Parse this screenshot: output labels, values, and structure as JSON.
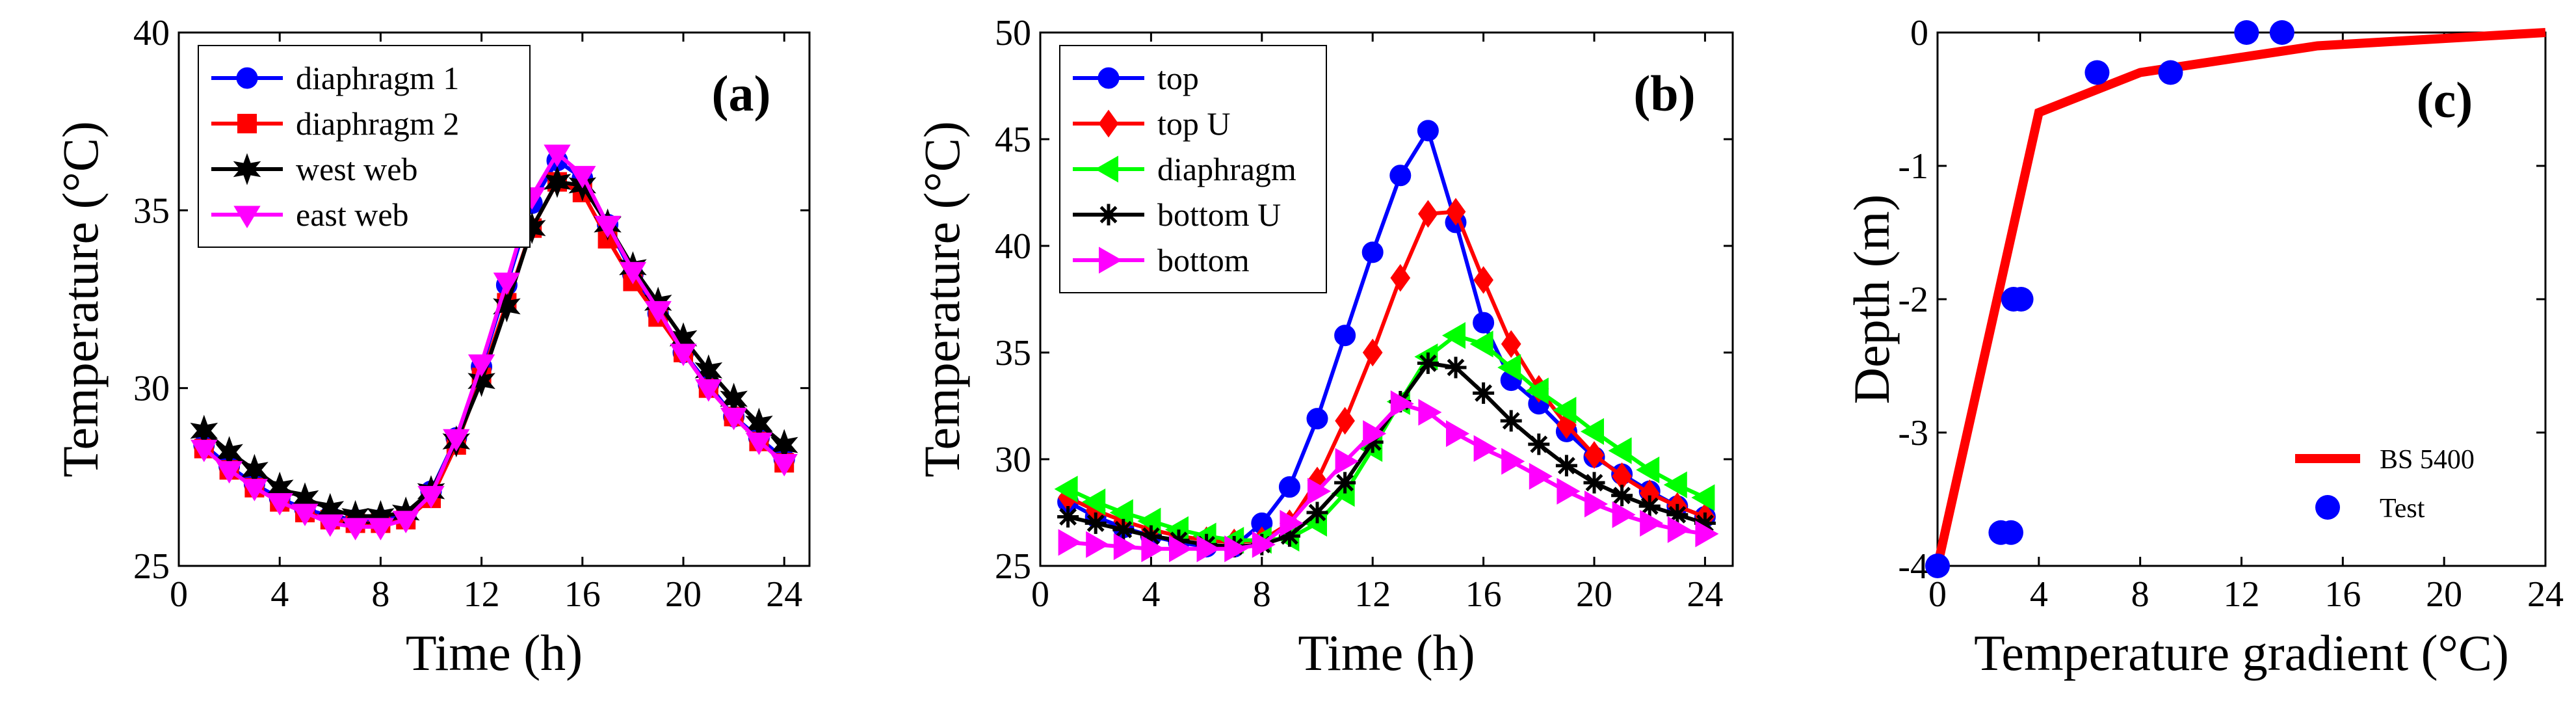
{
  "chart_data": [
    {
      "type": "line",
      "panel_label": "(a)",
      "xlabel": "Time (h)",
      "ylabel": "Temperature (°C)",
      "xlim": [
        0,
        25
      ],
      "ylim": [
        25,
        40
      ],
      "xticks": [
        0,
        4,
        8,
        12,
        16,
        20,
        24
      ],
      "yticks": [
        25,
        30,
        35,
        40
      ],
      "grid": false,
      "legend_position": "top-left",
      "x": [
        1,
        2,
        3,
        4,
        5,
        6,
        7,
        8,
        9,
        10,
        11,
        12,
        13,
        14,
        15,
        16,
        17,
        18,
        19,
        20,
        21,
        22,
        23,
        24
      ],
      "series": [
        {
          "name": "diaphragm 1",
          "color": "#0000ff",
          "marker": "circle",
          "values": [
            28.4,
            27.8,
            27.3,
            26.9,
            26.6,
            26.4,
            26.3,
            26.3,
            26.4,
            27.1,
            28.6,
            30.6,
            32.9,
            35.2,
            36.4,
            35.9,
            34.6,
            33.2,
            32.1,
            31.0,
            30.1,
            29.2,
            28.6,
            28.0
          ]
        },
        {
          "name": "diaphragm 2",
          "color": "#ff0000",
          "marker": "square",
          "values": [
            28.3,
            27.7,
            27.2,
            26.8,
            26.5,
            26.3,
            26.2,
            26.2,
            26.3,
            26.9,
            28.4,
            30.3,
            32.4,
            34.5,
            35.8,
            35.5,
            34.2,
            33.0,
            32.0,
            31.0,
            30.0,
            29.2,
            28.5,
            27.9
          ]
        },
        {
          "name": "west web",
          "color": "#000000",
          "marker": "star",
          "values": [
            28.8,
            28.2,
            27.7,
            27.2,
            26.9,
            26.6,
            26.4,
            26.4,
            26.5,
            27.1,
            28.5,
            30.2,
            32.3,
            34.5,
            35.8,
            35.7,
            34.6,
            33.4,
            32.4,
            31.4,
            30.5,
            29.7,
            29.0,
            28.4
          ]
        },
        {
          "name": "east web",
          "color": "#ff00ff",
          "marker": "triangle-down",
          "values": [
            28.3,
            27.7,
            27.2,
            26.8,
            26.5,
            26.2,
            26.1,
            26.1,
            26.3,
            27.0,
            28.6,
            30.7,
            33.0,
            35.4,
            36.6,
            36.0,
            34.6,
            33.3,
            32.2,
            31.0,
            30.0,
            29.2,
            28.5,
            27.9
          ]
        }
      ]
    },
    {
      "type": "line",
      "panel_label": "(b)",
      "xlabel": "Time (h)",
      "ylabel": "Temperature (°C)",
      "xlim": [
        0,
        25
      ],
      "ylim": [
        25,
        50
      ],
      "xticks": [
        0,
        4,
        8,
        12,
        16,
        20,
        24
      ],
      "yticks": [
        25,
        30,
        35,
        40,
        45,
        50
      ],
      "grid": false,
      "legend_position": "top-left",
      "x": [
        1,
        2,
        3,
        4,
        5,
        6,
        7,
        8,
        9,
        10,
        11,
        12,
        13,
        14,
        15,
        16,
        17,
        18,
        19,
        20,
        21,
        22,
        23,
        24
      ],
      "series": [
        {
          "name": "top",
          "color": "#0000ff",
          "marker": "circle",
          "values": [
            28.0,
            27.3,
            26.8,
            26.4,
            26.1,
            25.9,
            25.9,
            27.0,
            28.7,
            31.9,
            35.8,
            39.7,
            43.3,
            45.4,
            41.1,
            36.4,
            33.7,
            32.6,
            31.3,
            30.1,
            29.3,
            28.5,
            27.8,
            27.3
          ]
        },
        {
          "name": "top U",
          "color": "#ff0000",
          "marker": "diamond",
          "values": [
            28.2,
            27.6,
            27.1,
            26.7,
            26.4,
            26.2,
            26.1,
            26.2,
            27.0,
            29.0,
            31.8,
            35.0,
            38.5,
            41.5,
            41.6,
            38.4,
            35.4,
            33.3,
            31.6,
            30.2,
            29.2,
            28.4,
            27.8,
            27.3
          ]
        },
        {
          "name": "diaphragm",
          "color": "#00ff00",
          "marker": "triangle-left",
          "values": [
            28.6,
            28.0,
            27.5,
            27.1,
            26.7,
            26.4,
            26.2,
            26.2,
            26.3,
            27.0,
            28.4,
            30.5,
            32.7,
            34.8,
            35.8,
            35.4,
            34.3,
            33.2,
            32.3,
            31.3,
            30.4,
            29.5,
            28.8,
            28.2
          ]
        },
        {
          "name": "bottom U",
          "color": "#000000",
          "marker": "asterisk",
          "values": [
            27.3,
            27.0,
            26.7,
            26.4,
            26.2,
            26.0,
            25.9,
            26.0,
            26.4,
            27.5,
            28.9,
            30.8,
            32.7,
            34.5,
            34.3,
            33.1,
            31.8,
            30.7,
            29.7,
            28.9,
            28.3,
            27.8,
            27.4,
            27.0
          ]
        },
        {
          "name": "bottom",
          "color": "#ff00ff",
          "marker": "triangle-right",
          "values": [
            26.1,
            26.0,
            25.9,
            25.8,
            25.8,
            25.8,
            25.8,
            26.0,
            27.0,
            28.5,
            29.9,
            31.2,
            32.6,
            32.2,
            31.2,
            30.5,
            29.9,
            29.2,
            28.5,
            27.9,
            27.4,
            27.0,
            26.7,
            26.5
          ]
        }
      ]
    },
    {
      "type": "line",
      "panel_label": "(c)",
      "xlabel": "Temperature gradient (°C)",
      "ylabel": "Depth (m)",
      "xlim": [
        0,
        24
      ],
      "ylim": [
        -4,
        0
      ],
      "xticks": [
        0,
        4,
        8,
        12,
        16,
        20,
        24
      ],
      "yticks": [
        -4,
        -3,
        -2,
        -1,
        0
      ],
      "grid": false,
      "legend_position": "bottom-right",
      "series": [
        {
          "name": "BS 5400",
          "color": "#ff0000",
          "style": "line",
          "x": [
            0,
            4,
            8,
            15,
            24
          ],
          "y": [
            -4,
            -0.6,
            -0.3,
            -0.1,
            0
          ]
        },
        {
          "name": "Test",
          "color": "#0000ff",
          "style": "markers",
          "x": [
            0,
            2.5,
            2.9,
            3.0,
            3.3,
            6.3,
            9.2,
            12.2,
            13.6
          ],
          "y": [
            -4,
            -3.75,
            -3.75,
            -2.0,
            -2.0,
            -0.3,
            -0.3,
            0,
            0
          ]
        }
      ]
    }
  ]
}
